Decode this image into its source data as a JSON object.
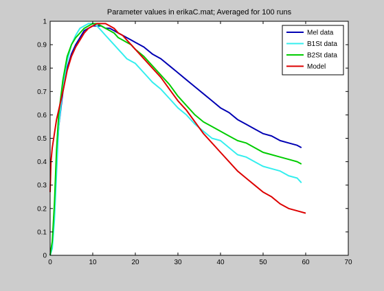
{
  "chart_data": {
    "type": "line",
    "title": "Parameter values in erikaC.mat; Averaged for 100 runs",
    "xlabel": "",
    "ylabel": "",
    "xlim": [
      0,
      70
    ],
    "ylim": [
      0,
      1
    ],
    "xticks": [
      0,
      10,
      20,
      30,
      40,
      50,
      60,
      70
    ],
    "yticks": [
      0,
      0.1,
      0.2,
      0.3,
      0.4,
      0.5,
      0.6,
      0.7,
      0.8,
      0.9,
      1
    ],
    "xtick_labels": [
      "0",
      "10",
      "20",
      "30",
      "40",
      "50",
      "60",
      "70"
    ],
    "ytick_labels": [
      "0",
      "0.1",
      "0.2",
      "0.3",
      "0.4",
      "0.5",
      "0.6",
      "0.7",
      "0.8",
      "0.9",
      "1"
    ],
    "grid": false,
    "legend_position": "top-right",
    "series": [
      {
        "name": "Mel data",
        "color": "#0000b3",
        "x": [
          0,
          0.5,
          1,
          1.5,
          2,
          3,
          4,
          5,
          6,
          7,
          8,
          9,
          10,
          11,
          12,
          13,
          14,
          15,
          16,
          17,
          18,
          19,
          20,
          22,
          24,
          26,
          28,
          30,
          32,
          34,
          36,
          38,
          40,
          42,
          44,
          46,
          48,
          50,
          52,
          54,
          56,
          58,
          59
        ],
        "y": [
          0.0,
          0.05,
          0.2,
          0.4,
          0.55,
          0.7,
          0.8,
          0.86,
          0.9,
          0.93,
          0.96,
          0.97,
          0.98,
          0.98,
          0.98,
          0.97,
          0.97,
          0.96,
          0.95,
          0.94,
          0.93,
          0.92,
          0.91,
          0.89,
          0.86,
          0.84,
          0.81,
          0.78,
          0.75,
          0.72,
          0.69,
          0.66,
          0.63,
          0.61,
          0.58,
          0.56,
          0.54,
          0.52,
          0.51,
          0.49,
          0.48,
          0.47,
          0.46
        ]
      },
      {
        "name": "B1St data",
        "color": "#33eeee",
        "x": [
          0,
          0.5,
          1,
          1.5,
          2,
          3,
          4,
          5,
          6,
          7,
          8,
          9,
          10,
          11,
          12,
          13,
          14,
          15,
          16,
          17,
          18,
          19,
          20,
          22,
          24,
          26,
          28,
          30,
          32,
          34,
          36,
          38,
          40,
          42,
          44,
          46,
          48,
          50,
          52,
          54,
          56,
          58,
          59
        ],
        "y": [
          0.0,
          0.03,
          0.15,
          0.35,
          0.55,
          0.72,
          0.83,
          0.9,
          0.94,
          0.97,
          0.98,
          0.99,
          0.99,
          0.98,
          0.96,
          0.94,
          0.92,
          0.9,
          0.88,
          0.86,
          0.84,
          0.83,
          0.82,
          0.78,
          0.74,
          0.71,
          0.67,
          0.63,
          0.6,
          0.56,
          0.53,
          0.5,
          0.49,
          0.46,
          0.43,
          0.42,
          0.4,
          0.38,
          0.37,
          0.36,
          0.34,
          0.33,
          0.31
        ]
      },
      {
        "name": "B2St data",
        "color": "#00cc00",
        "x": [
          0,
          0.5,
          1,
          1.5,
          2,
          3,
          4,
          5,
          6,
          7,
          8,
          9,
          10,
          11,
          12,
          13,
          14,
          15,
          16,
          17,
          18,
          19,
          20,
          22,
          24,
          26,
          28,
          30,
          32,
          34,
          36,
          38,
          40,
          42,
          44,
          46,
          48,
          50,
          52,
          54,
          56,
          58,
          59
        ],
        "y": [
          0.0,
          0.06,
          0.22,
          0.45,
          0.6,
          0.75,
          0.85,
          0.9,
          0.93,
          0.95,
          0.97,
          0.98,
          0.99,
          0.99,
          0.98,
          0.97,
          0.96,
          0.95,
          0.93,
          0.92,
          0.91,
          0.9,
          0.88,
          0.85,
          0.81,
          0.77,
          0.73,
          0.68,
          0.64,
          0.6,
          0.57,
          0.55,
          0.53,
          0.51,
          0.49,
          0.48,
          0.46,
          0.44,
          0.43,
          0.42,
          0.41,
          0.4,
          0.39
        ]
      },
      {
        "name": "Model",
        "color": "#dd0000",
        "x": [
          0,
          0.2,
          0.5,
          1,
          1.5,
          2,
          3,
          4,
          5,
          6,
          7,
          8,
          9,
          10,
          11,
          12,
          13,
          14,
          15,
          16,
          17,
          18,
          19,
          20,
          22,
          24,
          26,
          28,
          30,
          32,
          34,
          36,
          38,
          40,
          42,
          44,
          46,
          48,
          50,
          52,
          54,
          56,
          58,
          60
        ],
        "y": [
          0.27,
          0.4,
          0.46,
          0.52,
          0.58,
          0.62,
          0.7,
          0.79,
          0.85,
          0.89,
          0.92,
          0.95,
          0.97,
          0.98,
          0.99,
          0.99,
          0.99,
          0.98,
          0.97,
          0.95,
          0.94,
          0.92,
          0.9,
          0.88,
          0.84,
          0.8,
          0.76,
          0.71,
          0.66,
          0.62,
          0.57,
          0.52,
          0.48,
          0.44,
          0.4,
          0.36,
          0.33,
          0.3,
          0.27,
          0.25,
          0.22,
          0.2,
          0.19,
          0.18
        ]
      }
    ]
  }
}
